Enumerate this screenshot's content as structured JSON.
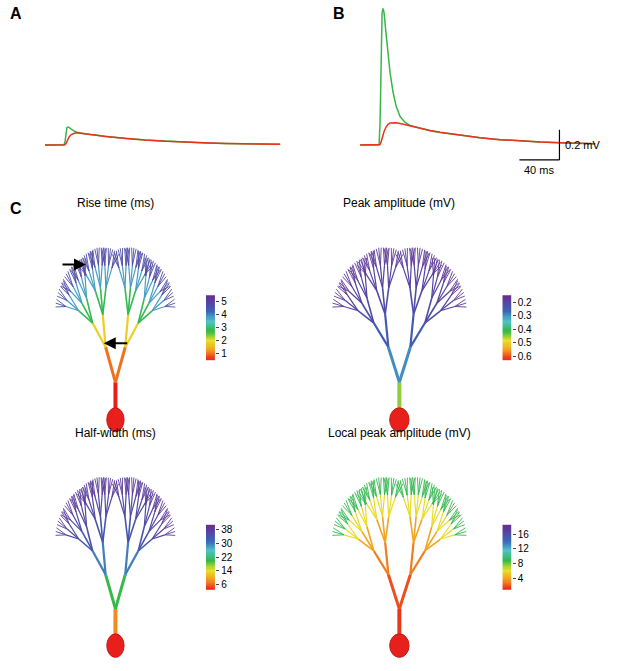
{
  "chart_data": [
    {
      "type": "line",
      "title": "A",
      "tick_labels": false,
      "x": [
        0,
        19,
        20,
        21,
        22,
        23,
        24,
        26,
        28,
        30,
        33,
        36,
        40,
        45,
        50,
        60,
        70,
        80,
        100,
        120,
        140,
        160,
        180,
        200,
        235
      ],
      "xlim": [
        0,
        240
      ],
      "ylim": [
        -0.12,
        0.93
      ],
      "series": [
        {
          "color": "#3cb44b",
          "values": [
            0,
            0,
            0.02,
            0.08,
            0.115,
            0.12,
            0.118,
            0.108,
            0.098,
            0.09,
            0.084,
            0.079,
            0.075,
            0.07,
            0.066,
            0.057,
            0.05,
            0.044,
            0.033,
            0.025,
            0.019,
            0.014,
            0.011,
            0.008,
            0.005
          ]
        },
        {
          "color": "#e8341c",
          "values": [
            0,
            0,
            0.002,
            0.01,
            0.025,
            0.04,
            0.052,
            0.068,
            0.076,
            0.08,
            0.08,
            0.078,
            0.075,
            0.07,
            0.066,
            0.057,
            0.05,
            0.044,
            0.033,
            0.025,
            0.019,
            0.014,
            0.011,
            0.008,
            0.005
          ]
        }
      ]
    },
    {
      "type": "line",
      "title": "B",
      "tick_labels": false,
      "x": [
        0,
        19,
        20,
        21,
        22,
        23,
        24,
        26,
        28,
        30,
        33,
        36,
        40,
        45,
        50,
        60,
        70,
        80,
        100,
        120,
        140,
        160,
        180,
        200,
        235
      ],
      "xlim": [
        0,
        240
      ],
      "ylim": [
        -0.12,
        0.93
      ],
      "series": [
        {
          "color": "#3cb44b",
          "values": [
            0,
            0,
            0.15,
            0.6,
            0.88,
            0.91,
            0.88,
            0.74,
            0.6,
            0.48,
            0.35,
            0.26,
            0.19,
            0.15,
            0.13,
            0.11,
            0.095,
            0.083,
            0.063,
            0.048,
            0.036,
            0.027,
            0.02,
            0.015,
            0.008
          ]
        },
        {
          "color": "#e8341c",
          "values": [
            0,
            0,
            0.003,
            0.02,
            0.045,
            0.07,
            0.09,
            0.12,
            0.138,
            0.147,
            0.15,
            0.148,
            0.143,
            0.135,
            0.128,
            0.112,
            0.097,
            0.085,
            0.064,
            0.048,
            0.036,
            0.027,
            0.02,
            0.015,
            0.008
          ]
        }
      ],
      "scale_bar": {
        "x": 40,
        "x_label": "40 ms",
        "y": 0.2,
        "y_label": "0.2 mV"
      }
    },
    {
      "type": "morphology",
      "title": "C",
      "panels": [
        {
          "title": "Rise time (ms)",
          "values_by_order": [
            0.5,
            1.0,
            1.8,
            2.8,
            3.8,
            4.8
          ],
          "color_range": [
            0.5,
            5.5
          ],
          "color_ticks": [
            1,
            2,
            3,
            4,
            5
          ]
        },
        {
          "title": "Peak amplitude (mV)",
          "values_by_order": [
            0.45,
            0.3,
            0.25,
            0.22,
            0.2,
            0.18
          ],
          "color_range": [
            0.63,
            0.15
          ],
          "color_ticks": [
            0.2,
            0.3,
            0.4,
            0.5,
            0.6
          ]
        },
        {
          "title": "Half-width (ms)",
          "values_by_order": [
            8,
            20,
            30,
            34,
            36,
            38
          ],
          "color_range": [
            3,
            41
          ],
          "color_ticks": [
            6,
            14,
            22,
            30,
            38
          ]
        },
        {
          "title": "Local peak amplitude (mV)",
          "values_by_order": [
            1.5,
            2,
            3,
            4,
            6,
            9
          ],
          "color_range": [
            1,
            18.5
          ],
          "color_ticks": [
            4,
            8,
            12,
            16
          ]
        }
      ]
    }
  ]
}
